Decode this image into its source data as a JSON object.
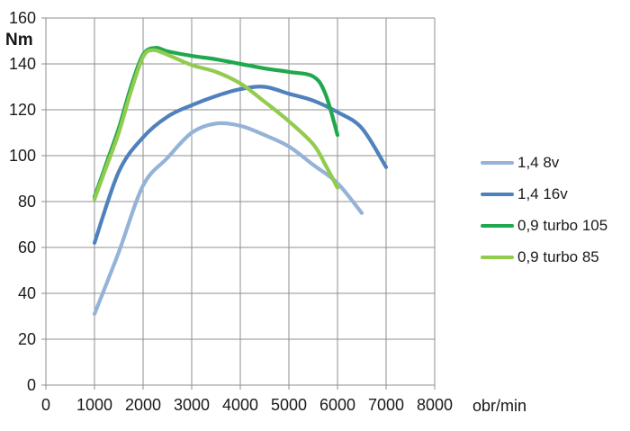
{
  "chart_data": {
    "type": "line",
    "title": "",
    "xlabel": "obr/min",
    "ylabel": "Nm",
    "xlim": [
      0,
      8000
    ],
    "ylim": [
      0,
      160
    ],
    "x_ticks": [
      0,
      1000,
      2000,
      3000,
      4000,
      5000,
      6000,
      7000,
      8000
    ],
    "y_ticks": [
      0,
      20,
      40,
      60,
      80,
      100,
      120,
      140,
      160
    ],
    "grid": true,
    "legend_position": "right",
    "colors": {
      "grid": "#8F8F8F",
      "text": "#1A1A1A",
      "background": "#FFFFFF"
    },
    "series": [
      {
        "name": "1,4 8v",
        "color": "#95B3D7",
        "points": [
          [
            1000,
            31
          ],
          [
            1500,
            58
          ],
          [
            2000,
            87
          ],
          [
            2500,
            99
          ],
          [
            3000,
            110
          ],
          [
            3500,
            114
          ],
          [
            4000,
            113
          ],
          [
            4500,
            109
          ],
          [
            5000,
            104
          ],
          [
            5500,
            96
          ],
          [
            6000,
            88
          ],
          [
            6500,
            75
          ]
        ]
      },
      {
        "name": "1,4 16v",
        "color": "#4F81BD",
        "points": [
          [
            1000,
            62
          ],
          [
            1500,
            93
          ],
          [
            2000,
            108
          ],
          [
            2500,
            117
          ],
          [
            3000,
            122
          ],
          [
            3500,
            126
          ],
          [
            4000,
            129
          ],
          [
            4500,
            130
          ],
          [
            5000,
            127
          ],
          [
            5500,
            124
          ],
          [
            6000,
            119
          ],
          [
            6500,
            112
          ],
          [
            7000,
            95
          ]
        ]
      },
      {
        "name": "0,9 turbo 105",
        "color": "#1FA84D",
        "points": [
          [
            1000,
            82
          ],
          [
            1250,
            97
          ],
          [
            1500,
            112
          ],
          [
            1750,
            130
          ],
          [
            2000,
            144
          ],
          [
            2250,
            147
          ],
          [
            2500,
            145.5
          ],
          [
            3000,
            143.5
          ],
          [
            3500,
            142
          ],
          [
            4000,
            140
          ],
          [
            4500,
            138
          ],
          [
            5000,
            136.5
          ],
          [
            5500,
            134.5
          ],
          [
            5750,
            127
          ],
          [
            6000,
            109
          ]
        ]
      },
      {
        "name": "0,9 turbo 85",
        "color": "#92CB4E",
        "points": [
          [
            1000,
            81
          ],
          [
            1250,
            95.5
          ],
          [
            1500,
            110
          ],
          [
            1750,
            128
          ],
          [
            2000,
            143
          ],
          [
            2200,
            146
          ],
          [
            2500,
            144
          ],
          [
            3000,
            139.5
          ],
          [
            3500,
            136.5
          ],
          [
            4000,
            131.5
          ],
          [
            4500,
            123.5
          ],
          [
            5000,
            115
          ],
          [
            5500,
            105
          ],
          [
            5750,
            96
          ],
          [
            6000,
            86
          ]
        ]
      }
    ]
  }
}
